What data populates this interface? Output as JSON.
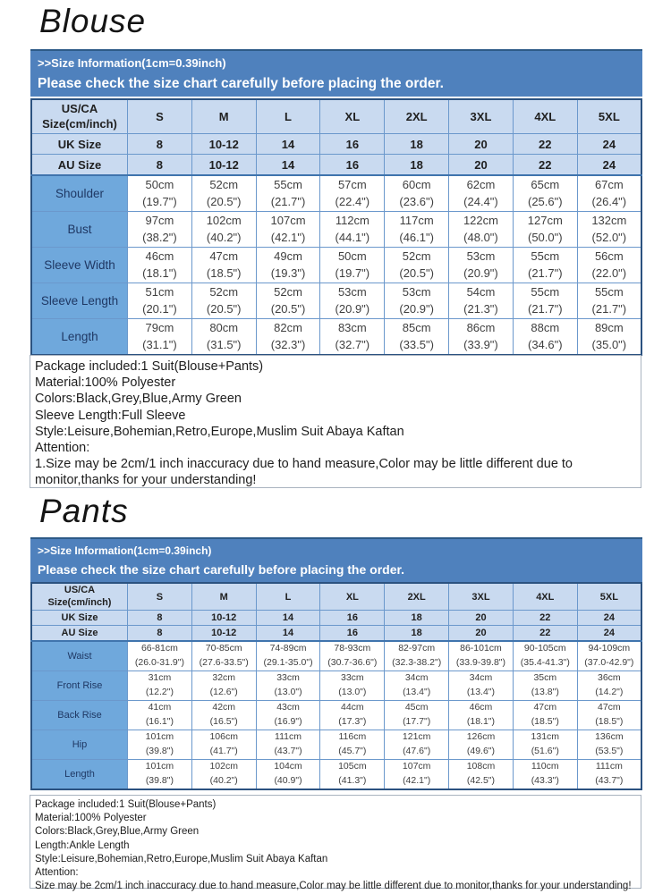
{
  "theme": {
    "bar_blue": "#4f81bd",
    "bar_border": "#2d5a87",
    "bar_text": "#ffffff",
    "header_bg": "#c9daf0",
    "label_bg": "#6fa8dc",
    "label_text": "#1f3864",
    "grid_line": "#6b98cc",
    "outer_border": "#2b5280",
    "cell_text": "#3f3f3f"
  },
  "blouse": {
    "title": "Blouse",
    "info_line": ">>Size Information(1cm=0.39inch)",
    "check_line": "Please check the size chart carefully before placing the order.",
    "table": {
      "corner_label": "US/CA\nSize(cm/inch)",
      "size_labels": [
        "S",
        "M",
        "L",
        "XL",
        "2XL",
        "3XL",
        "4XL",
        "5XL"
      ],
      "size_rows": [
        {
          "label": "UK Size",
          "values": [
            "8",
            "10-12",
            "14",
            "16",
            "18",
            "20",
            "22",
            "24"
          ]
        },
        {
          "label": "AU Size",
          "values": [
            "8",
            "10-12",
            "14",
            "16",
            "18",
            "20",
            "22",
            "24"
          ]
        }
      ],
      "measure_rows": [
        {
          "label": "Shoulder",
          "cells": [
            "50cm\n(19.7\")",
            "52cm\n(20.5\")",
            "55cm\n(21.7\")",
            "57cm\n(22.4\")",
            "60cm\n(23.6\")",
            "62cm\n(24.4\")",
            "65cm\n(25.6\")",
            "67cm\n(26.4\")"
          ]
        },
        {
          "label": "Bust",
          "cells": [
            "97cm\n(38.2\")",
            "102cm\n(40.2\")",
            "107cm\n(42.1\")",
            "112cm\n(44.1\")",
            "117cm\n(46.1\")",
            "122cm\n(48.0\")",
            "127cm\n(50.0\")",
            "132cm\n(52.0\")"
          ]
        },
        {
          "label": "Sleeve Width",
          "cells": [
            "46cm\n(18.1\")",
            "47cm\n(18.5\")",
            "49cm\n(19.3\")",
            "50cm\n(19.7\")",
            "52cm\n(20.5\")",
            "53cm\n(20.9\")",
            "55cm\n(21.7\")",
            "56cm\n(22.0\")"
          ]
        },
        {
          "label": "Sleeve Length",
          "cells": [
            "51cm\n(20.1\")",
            "52cm\n(20.5\")",
            "52cm\n(20.5\")",
            "53cm\n(20.9\")",
            "53cm\n(20.9\")",
            "54cm\n(21.3\")",
            "55cm\n(21.7\")",
            "55cm\n(21.7\")"
          ]
        },
        {
          "label": "Length",
          "cells": [
            "79cm\n(31.1\")",
            "80cm\n(31.5\")",
            "82cm\n(32.3\")",
            "83cm\n(32.7\")",
            "85cm\n(33.5\")",
            "86cm\n(33.9\")",
            "88cm\n(34.6\")",
            "89cm\n(35.0\")"
          ]
        }
      ]
    },
    "notes": [
      "Package included:1 Suit(Blouse+Pants)",
      "Material:100% Polyester",
      "Colors:Black,Grey,Blue,Army Green",
      "Sleeve Length:Full Sleeve",
      "Style:Leisure,Bohemian,Retro,Europe,Muslim Suit Abaya Kaftan",
      "Attention:",
      "1.Size may be 2cm/1 inch inaccuracy due to hand measure,Color may be little different due to monitor,thanks for your understanding!"
    ]
  },
  "pants": {
    "title": "Pants",
    "info_line": ">>Size Information(1cm=0.39inch)",
    "check_line": "Please check the size chart carefully before placing the order.",
    "table": {
      "corner_label": "US/CA\nSize(cm/inch)",
      "size_labels": [
        "S",
        "M",
        "L",
        "XL",
        "2XL",
        "3XL",
        "4XL",
        "5XL"
      ],
      "size_rows": [
        {
          "label": "UK Size",
          "values": [
            "8",
            "10-12",
            "14",
            "16",
            "18",
            "20",
            "22",
            "24"
          ]
        },
        {
          "label": "AU Size",
          "values": [
            "8",
            "10-12",
            "14",
            "16",
            "18",
            "20",
            "22",
            "24"
          ]
        }
      ],
      "measure_rows": [
        {
          "label": "Waist",
          "cells": [
            "66-81cm\n(26.0-31.9\")",
            "70-85cm\n(27.6-33.5\")",
            "74-89cm\n(29.1-35.0\")",
            "78-93cm\n(30.7-36.6\")",
            "82-97cm\n(32.3-38.2\")",
            "86-101cm\n(33.9-39.8\")",
            "90-105cm\n(35.4-41.3\")",
            "94-109cm\n(37.0-42.9\")"
          ]
        },
        {
          "label": "Front Rise",
          "cells": [
            "31cm\n(12.2\")",
            "32cm\n(12.6\")",
            "33cm\n(13.0\")",
            "33cm\n(13.0\")",
            "34cm\n(13.4\")",
            "34cm\n(13.4\")",
            "35cm\n(13.8\")",
            "36cm\n(14.2\")"
          ]
        },
        {
          "label": "Back Rise",
          "cells": [
            "41cm\n(16.1\")",
            "42cm\n(16.5\")",
            "43cm\n(16.9\")",
            "44cm\n(17.3\")",
            "45cm\n(17.7\")",
            "46cm\n(18.1\")",
            "47cm\n(18.5\")",
            "47cm\n(18.5\")"
          ]
        },
        {
          "label": "Hip",
          "cells": [
            "101cm\n(39.8\")",
            "106cm\n(41.7\")",
            "111cm\n(43.7\")",
            "116cm\n(45.7\")",
            "121cm\n(47.6\")",
            "126cm\n(49.6\")",
            "131cm\n(51.6\")",
            "136cm\n(53.5\")"
          ]
        },
        {
          "label": "Length",
          "cells": [
            "101cm\n(39.8\")",
            "102cm\n(40.2\")",
            "104cm\n(40.9\")",
            "105cm\n(41.3\")",
            "107cm\n(42.1\")",
            "108cm\n(42.5\")",
            "110cm\n(43.3\")",
            "111cm\n(43.7\")"
          ]
        }
      ]
    },
    "notes": [
      "Package included:1 Suit(Blouse+Pants)",
      "Material:100% Polyester",
      "Colors:Black,Grey,Blue,Army Green",
      "Length:Ankle Length",
      "Style:Leisure,Bohemian,Retro,Europe,Muslim Suit Abaya Kaftan",
      "Attention:",
      "Size may be 2cm/1 inch inaccuracy due to hand measure,Color may be little different due to monitor,thanks for your understanding!"
    ]
  }
}
